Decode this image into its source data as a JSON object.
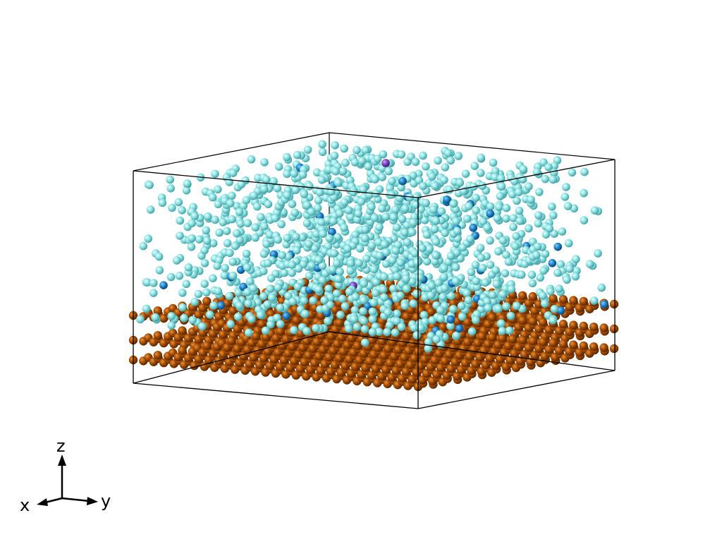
{
  "scene": {
    "type": "molecular-dynamics-snapshot",
    "background_color": "#ffffff",
    "box_edge_color": "#000000",
    "species": [
      {
        "role": "liquid-atom",
        "color": "#8fe4e4",
        "approx_count": 1400
      },
      {
        "role": "solute-atom",
        "color": "#1e7fc8",
        "approx_count": 40
      },
      {
        "role": "minor-atom",
        "color": "#7a3fc0",
        "approx_count": 2
      },
      {
        "role": "substrate-atom",
        "color": "#a34a00",
        "layers": 3
      }
    ]
  },
  "axes_triad": {
    "labels": {
      "z": "z",
      "x": "x",
      "y": "y"
    },
    "color": "#000000"
  }
}
